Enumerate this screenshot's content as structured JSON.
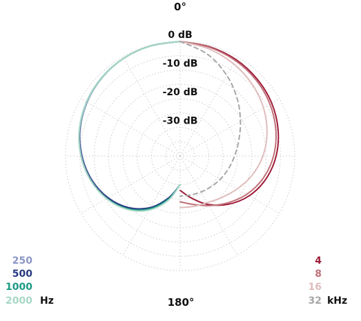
{
  "chart_data": {
    "type": "polar",
    "title": "",
    "angle_labels": {
      "top": "0°",
      "bottom": "180°"
    },
    "radial_ticks": [
      {
        "label": "0 dB",
        "value": 0
      },
      {
        "label": "-10 dB",
        "value": -10
      },
      {
        "label": "-20 dB",
        "value": -20
      },
      {
        "label": "-30 dB",
        "value": -30
      }
    ],
    "radial_range_db": [
      -40,
      0
    ],
    "grid": true,
    "legend_left": {
      "unit": "Hz",
      "entries": [
        {
          "label": "250",
          "color": "#8a96c4"
        },
        {
          "label": "500",
          "color": "#283a80"
        },
        {
          "label": "1000",
          "color": "#1a9a85"
        },
        {
          "label": "2000",
          "color": "#a8d8c6"
        }
      ]
    },
    "legend_right": {
      "unit": "kHz",
      "entries": [
        {
          "label": "4",
          "color": "#9e1c38"
        },
        {
          "label": "8",
          "color": "#c07078"
        },
        {
          "label": "16",
          "color": "#e0bcbc"
        },
        {
          "label": "32",
          "color": "#a6a6a6"
        }
      ]
    },
    "angles_deg": [
      0,
      15,
      30,
      45,
      60,
      75,
      90,
      105,
      120,
      135,
      150,
      165,
      180
    ],
    "series": [
      {
        "name": "250",
        "side": "left",
        "color": "#8a96c4",
        "dashed": false,
        "values_db": [
          0,
          -0.2,
          -0.6,
          -1.4,
          -2.5,
          -3.9,
          -5.8,
          -8.1,
          -11.0,
          -14.6,
          -19.3,
          -25.0,
          -30
        ]
      },
      {
        "name": "500",
        "side": "left",
        "color": "#283a80",
        "dashed": false,
        "values_db": [
          0,
          -0.2,
          -0.6,
          -1.3,
          -2.3,
          -3.7,
          -5.6,
          -7.9,
          -10.8,
          -14.5,
          -19.2,
          -25.0,
          -30
        ]
      },
      {
        "name": "1000",
        "side": "left",
        "color": "#1a9a85",
        "dashed": false,
        "values_db": [
          0,
          -0.2,
          -0.6,
          -1.3,
          -2.3,
          -3.6,
          -5.4,
          -7.6,
          -10.4,
          -14.0,
          -18.7,
          -24.5,
          -30
        ]
      },
      {
        "name": "2000",
        "side": "left",
        "color": "#a8d8c6",
        "dashed": false,
        "values_db": [
          0,
          -0.2,
          -0.6,
          -1.3,
          -2.3,
          -3.6,
          -5.4,
          -7.6,
          -10.3,
          -13.7,
          -18.2,
          -24.0,
          -30
        ]
      },
      {
        "name": "4",
        "side": "right",
        "color": "#9e1c38",
        "dashed": false,
        "values_db": [
          0,
          -0.5,
          -1.1,
          -2.0,
          -3.1,
          -4.6,
          -6.5,
          -9.0,
          -12.2,
          -16.2,
          -20.5,
          -24.8,
          -28
        ]
      },
      {
        "name": "8",
        "side": "right",
        "color": "#c07078",
        "dashed": false,
        "values_db": [
          0,
          -0.7,
          -1.5,
          -2.5,
          -3.8,
          -5.4,
          -7.4,
          -10.0,
          -13.2,
          -16.8,
          -20.0,
          -22.5,
          -24
        ]
      },
      {
        "name": "16",
        "side": "right",
        "color": "#e0bcbc",
        "dashed": false,
        "values_db": [
          0,
          -1.3,
          -2.8,
          -4.5,
          -6.4,
          -8.6,
          -11.1,
          -14.0,
          -17.0,
          -19.5,
          -21.2,
          -21.8,
          -22
        ]
      },
      {
        "name": "32",
        "side": "right",
        "color": "#a6a6a6",
        "dashed": true,
        "values_db": [
          0,
          -3.2,
          -7.5,
          -11.8,
          -15.7,
          -18.8,
          -21.0,
          -22.6,
          -23.8,
          -24.8,
          -25.5,
          -25.9,
          -26
        ]
      }
    ]
  }
}
